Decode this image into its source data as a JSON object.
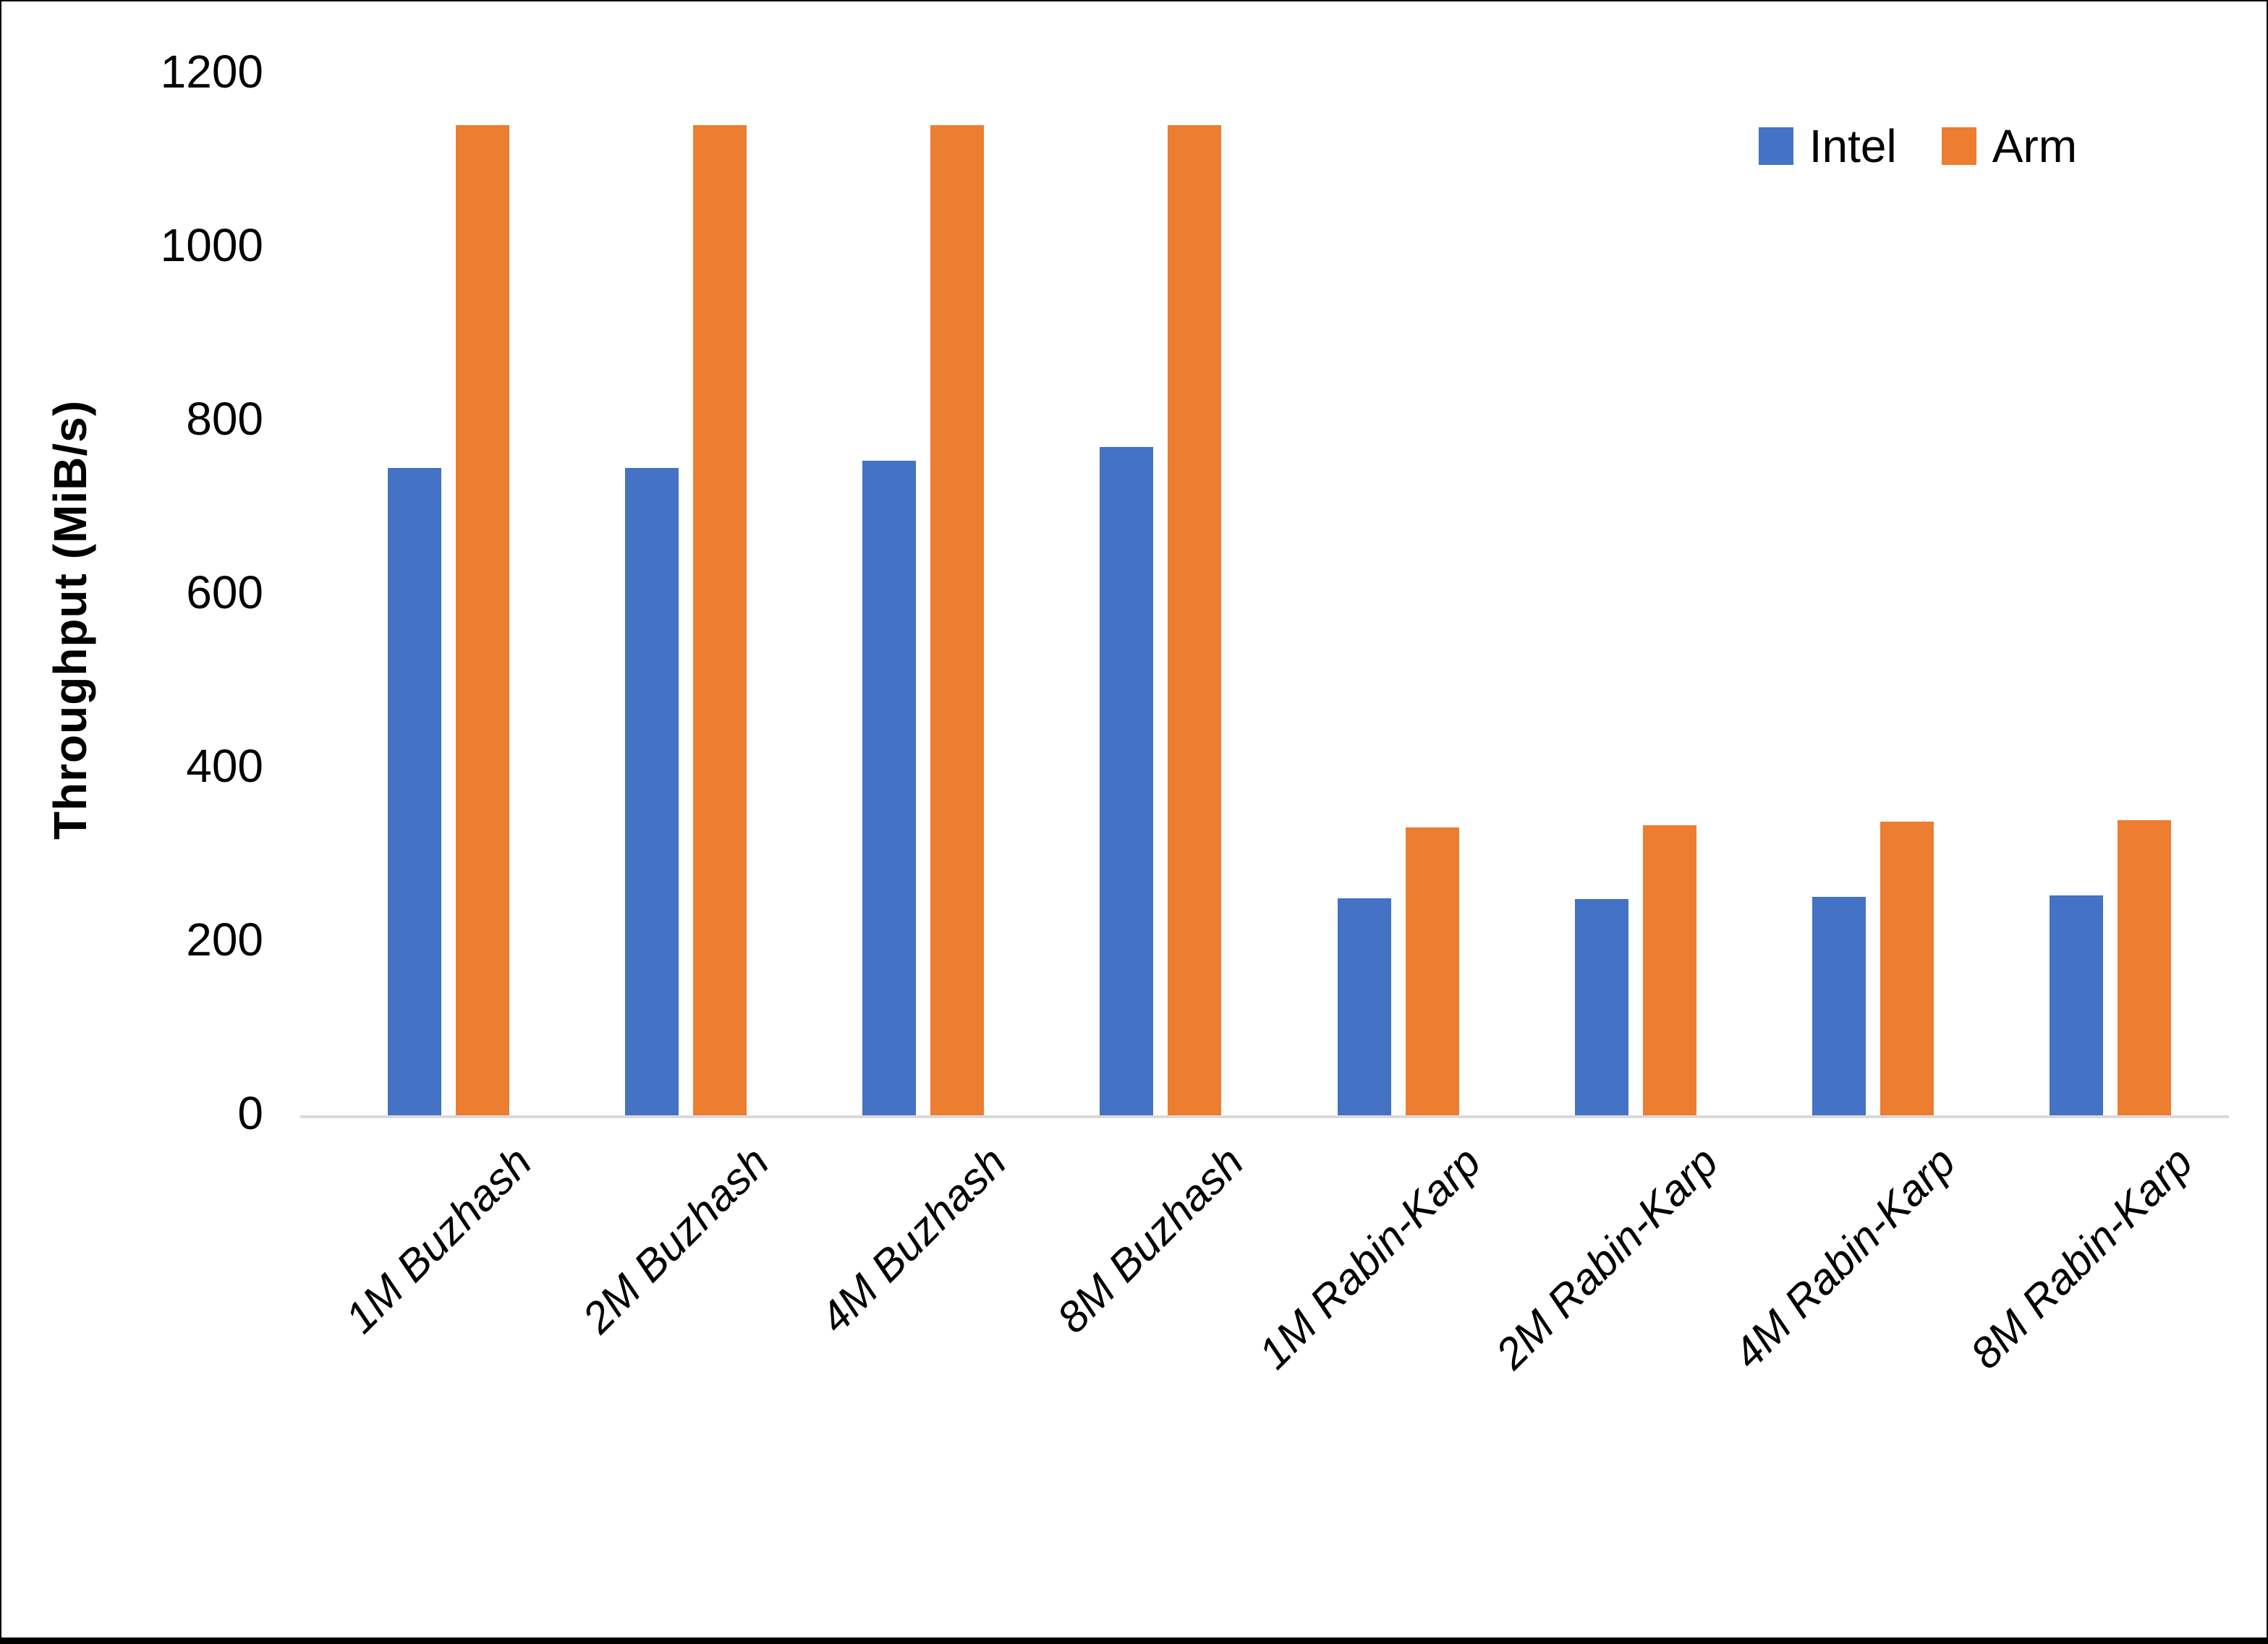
{
  "chart_data": {
    "type": "bar",
    "title": "",
    "xlabel": "",
    "ylabel": "Throughput (MiB/s)",
    "categories": [
      "1M Buzhash",
      "2M Buzhash",
      "4M Buzhash",
      "8M Buzhash",
      "1M Rabin-Karp",
      "2M Rabin-Karp",
      "4M Rabin-Karp",
      "8M Rabin-Karp"
    ],
    "series": [
      {
        "name": "Intel",
        "color": "#4472C4",
        "values": [
          746,
          746,
          754,
          770,
          250,
          249,
          252,
          253
        ]
      },
      {
        "name": "Arm",
        "color": "#ED7D31",
        "values": [
          1141,
          1141,
          1141,
          1141,
          332,
          334,
          338,
          340
        ]
      }
    ],
    "ylim": [
      0,
      1200
    ],
    "yticks": [
      0,
      200,
      400,
      600,
      800,
      1000,
      1200
    ],
    "grid": false,
    "legend_position": "top-right",
    "axis_line_color": "#D9D9D9",
    "text_color": "#000000",
    "background_color": "#FFFFFF"
  }
}
